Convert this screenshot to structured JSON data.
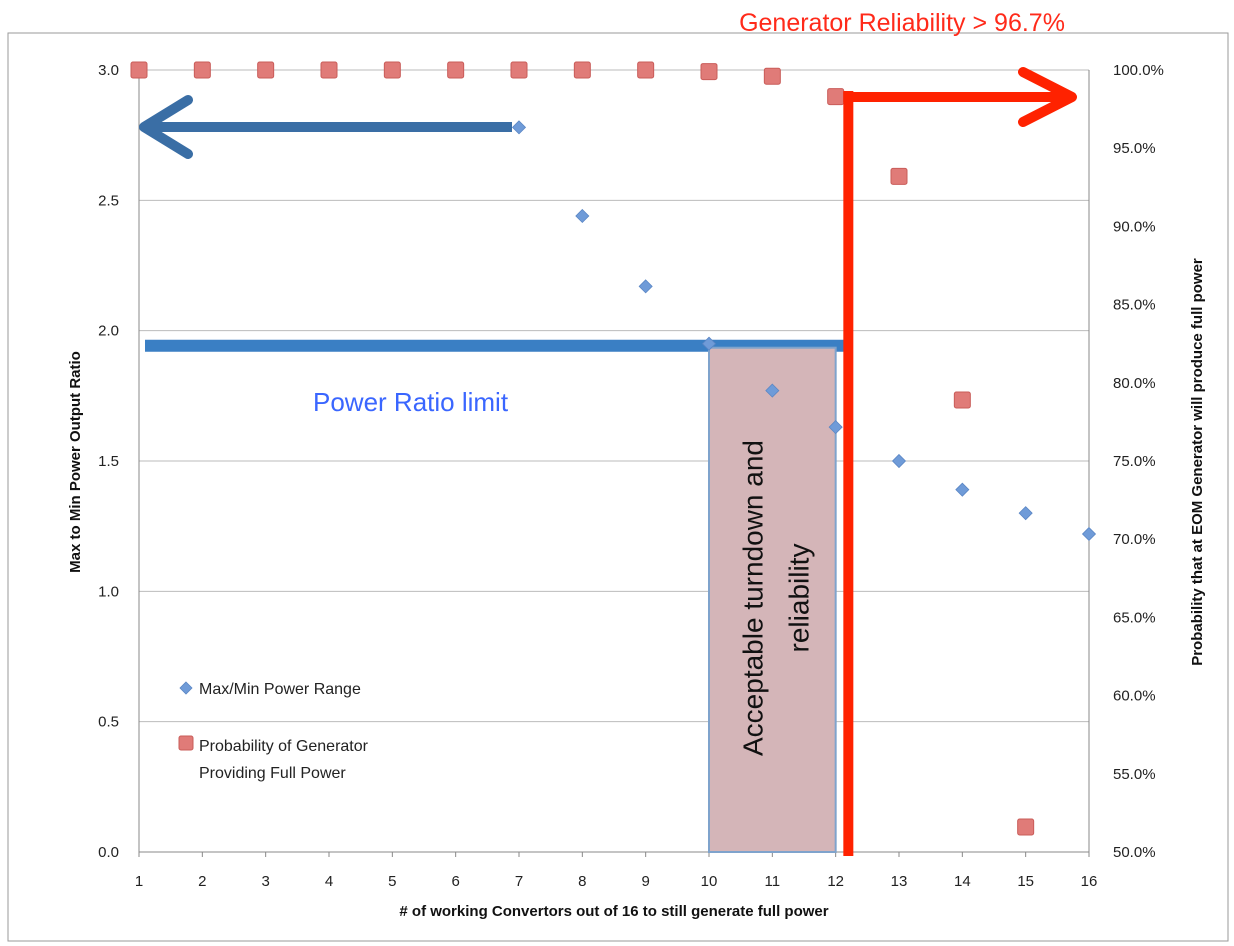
{
  "chart_data": {
    "type": "scatter",
    "title": "Generator Reliability > 96.7%",
    "xlabel": "# of working Convertors out of 16 to still generate full power",
    "ylabel": "Max to Min Power Output Ratio",
    "ylabel_right": "Probability that at EOM Generator will produce full power",
    "xlim": [
      1,
      16
    ],
    "ylim": [
      0,
      3
    ],
    "ylim_right": [
      0.5,
      1.0
    ],
    "x_ticks": [
      "1",
      "2",
      "3",
      "4",
      "5",
      "6",
      "7",
      "8",
      "9",
      "10",
      "11",
      "12",
      "13",
      "14",
      "15",
      "16"
    ],
    "y_ticks": [
      "0.0",
      "0.5",
      "1.0",
      "1.5",
      "2.0",
      "2.5",
      "3.0"
    ],
    "y_right_ticks": [
      "50.0%",
      "55.0%",
      "60.0%",
      "65.0%",
      "70.0%",
      "75.0%",
      "80.0%",
      "85.0%",
      "90.0%",
      "95.0%",
      "100.0%"
    ],
    "grid": true,
    "series": [
      {
        "name": "Max/Min Power Range",
        "axis": "left",
        "marker": "diamond",
        "color": "#6f9bd8",
        "x": [
          7,
          8,
          9,
          10,
          11,
          12,
          13,
          14,
          15,
          16
        ],
        "values": [
          2.78,
          2.44,
          2.17,
          1.95,
          1.77,
          1.63,
          1.5,
          1.39,
          1.3,
          1.22
        ]
      },
      {
        "name": "Probability of Generator Providing Full Power",
        "name_lines": [
          "Probability of Generator",
          "Providing Full Power"
        ],
        "axis": "right",
        "marker": "square",
        "color": "#e07b78",
        "x": [
          1,
          2,
          3,
          4,
          5,
          6,
          7,
          8,
          9,
          10,
          11,
          12,
          13,
          14,
          15
        ],
        "values": [
          1.0,
          1.0,
          1.0,
          1.0,
          1.0,
          1.0,
          1.0,
          1.0,
          1.0,
          0.999,
          0.996,
          0.983,
          0.932,
          0.789,
          0.516
        ]
      }
    ],
    "annotations": {
      "power_ratio_limit_label": "Power Ratio limit",
      "power_ratio_limit_value": 1.95,
      "acceptable_region_label_lines": [
        "Acceptable turndown and",
        "reliability"
      ],
      "acceptable_region_x": [
        10,
        12
      ],
      "reliability_threshold_x": 12.2
    },
    "legend_position": "bottom-left",
    "colors": {
      "diamond": "#6f9bd8",
      "square": "#e07b78",
      "limit_line": "#3a7fc4",
      "left_arrow": "#3a6ea5",
      "red": "#ff2200",
      "region_fill": "#d4b5b8",
      "region_border": "#7fa3cc",
      "grid": "#bbbbbb",
      "title": "#ff2a1a",
      "limit_label": "#3a66ff"
    }
  }
}
